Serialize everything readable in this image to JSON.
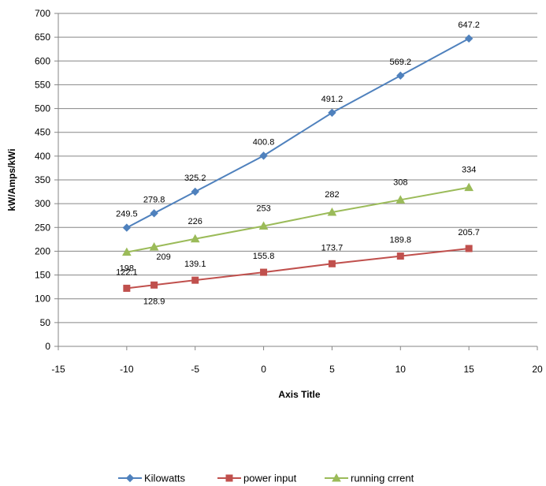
{
  "chart_data": {
    "type": "scatter",
    "xlabel": "Axis Title",
    "ylabel": "kW/Amps/kWi",
    "xlim": [
      -15,
      20
    ],
    "ylim": [
      0,
      700
    ],
    "x_ticks": [
      "-15",
      "-10",
      "-5",
      "0",
      "5",
      "10",
      "15",
      "20"
    ],
    "y_ticks": [
      "0",
      "50",
      "100",
      "150",
      "200",
      "250",
      "300",
      "350",
      "400",
      "450",
      "500",
      "550",
      "600",
      "650",
      "700"
    ],
    "grid": "horizontal",
    "legend_position": "bottom",
    "x": [
      -10,
      -8,
      -5,
      0,
      5,
      10,
      15
    ],
    "series": [
      {
        "name": "Kilowatts",
        "color": "#4f81bd",
        "marker": "diamond",
        "values": [
          249.5,
          279.8,
          325.2,
          400.8,
          491.2,
          569.2,
          647.2
        ],
        "labels": [
          "249.5",
          "279.8",
          "325.2",
          "400.8",
          "491.2",
          "569.2",
          "647.2"
        ]
      },
      {
        "name": "power input",
        "color": "#c0504d",
        "marker": "square",
        "values": [
          122.1,
          128.9,
          139.1,
          155.8,
          173.7,
          189.8,
          205.7
        ],
        "labels": [
          "122.1",
          "128.9",
          "139.1",
          "155.8",
          "173.7",
          "189.8",
          "205.7"
        ]
      },
      {
        "name": "running crrent",
        "color": "#9bbb59",
        "marker": "triangle",
        "values": [
          198,
          209,
          226,
          253,
          282,
          308,
          334
        ],
        "labels": [
          "198",
          "209",
          "226",
          "253",
          "282",
          "308",
          "334"
        ]
      }
    ]
  }
}
